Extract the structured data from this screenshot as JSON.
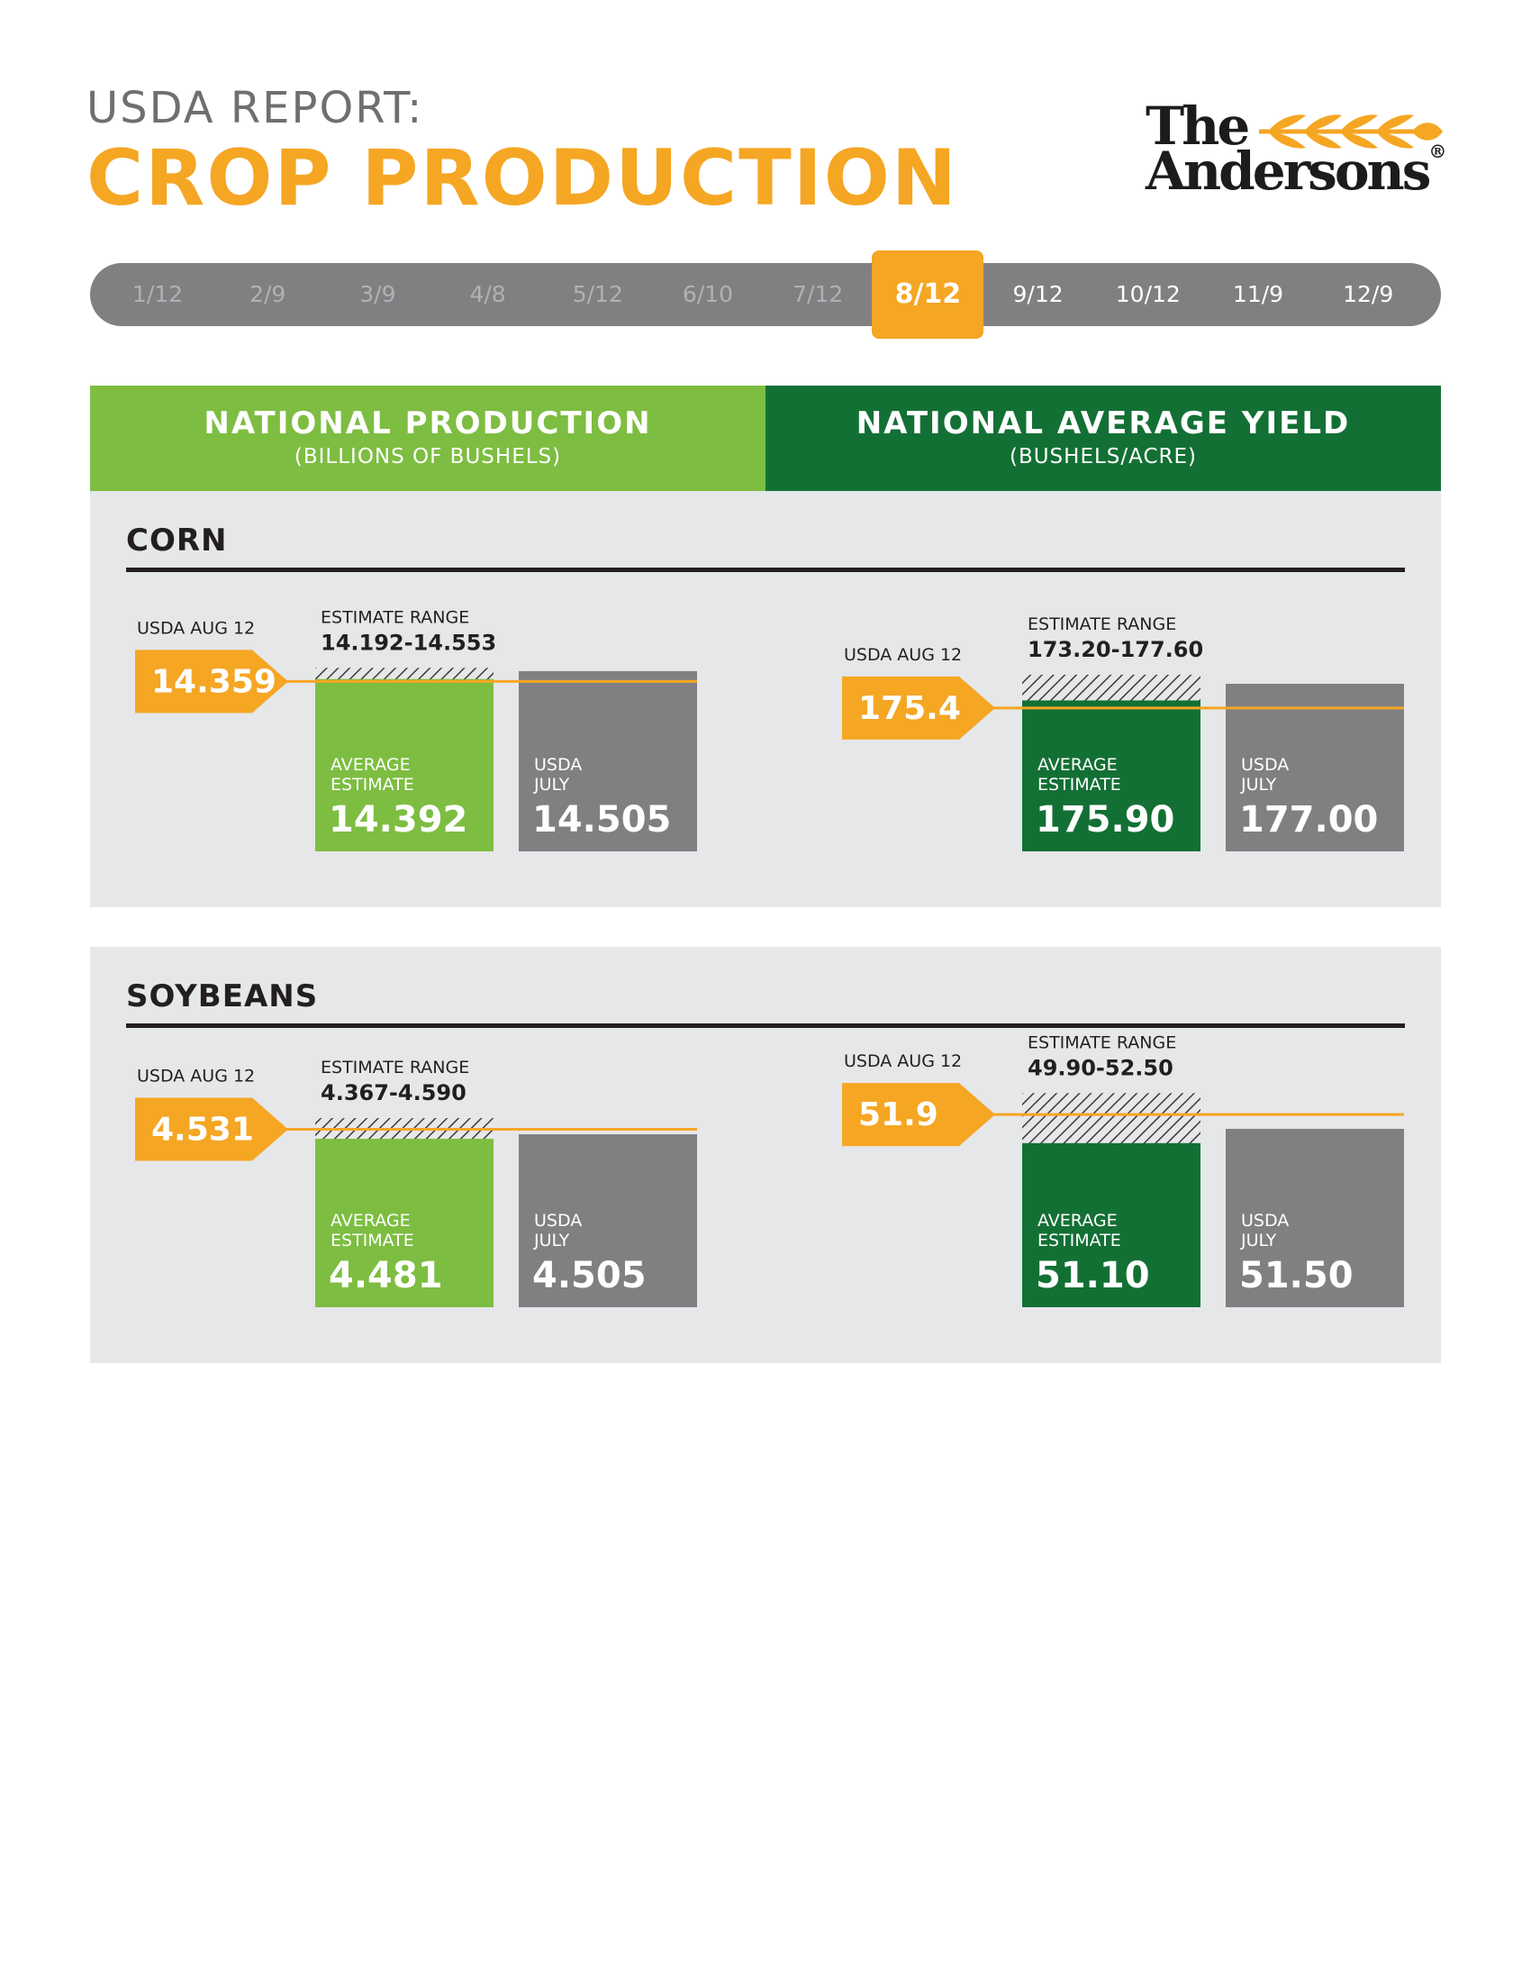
{
  "header": {
    "eyebrow": "USDA REPORT:",
    "title": "CROP PRODUCTION"
  },
  "logo": {
    "line1": "The",
    "line2": "Andersons",
    "registered": "®",
    "color_orange": "#f5a623",
    "color_dark": "#1c1c1c"
  },
  "timeline": {
    "dates": [
      "1/12",
      "2/9",
      "3/9",
      "4/8",
      "5/12",
      "6/10",
      "7/12",
      "8/12",
      "9/12",
      "10/12",
      "11/9",
      "12/9"
    ],
    "active_index": 7
  },
  "columns": {
    "left": {
      "title": "NATIONAL PRODUCTION",
      "subtitle": "(BILLIONS OF BUSHELS)"
    },
    "right": {
      "title": "NATIONAL AVERAGE YIELD",
      "subtitle": "(BUSHELS/ACRE)"
    }
  },
  "colors": {
    "orange": "#f5a623",
    "light_green": "#7dbd41",
    "dark_green": "#137035",
    "gray_bar": "#808083",
    "panel_bg": "#e6e7e8",
    "text_dark": "#231f20"
  },
  "chart_data": [
    {
      "type": "bar",
      "crop": "CORN",
      "metric": "production",
      "usda_label": "USDA AUG 12",
      "usda_value": 14.359,
      "range_label": "ESTIMATE RANGE",
      "range": "14.192-14.553",
      "range_low": 14.192,
      "range_high": 14.553,
      "avg_label": [
        "AVERAGE",
        "ESTIMATE"
      ],
      "avg_value": 14.392,
      "prev_label": [
        "USDA",
        "JULY"
      ],
      "prev_value": 14.505
    },
    {
      "type": "bar",
      "crop": "CORN",
      "metric": "yield",
      "usda_label": "USDA AUG 12",
      "usda_value": 175.4,
      "range_label": "ESTIMATE RANGE",
      "range": "173.20-177.60",
      "range_low": 173.2,
      "range_high": 177.6,
      "avg_label": [
        "AVERAGE",
        "ESTIMATE"
      ],
      "avg_value": 175.9,
      "avg_text": "175.90",
      "prev_label": [
        "USDA",
        "JULY"
      ],
      "prev_value": 177.0,
      "prev_text": "177.00"
    },
    {
      "type": "bar",
      "crop": "SOYBEANS",
      "metric": "production",
      "usda_label": "USDA AUG 12",
      "usda_value": 4.531,
      "range_label": "ESTIMATE RANGE",
      "range": "4.367-4.590",
      "range_low": 4.367,
      "range_high": 4.59,
      "avg_label": [
        "AVERAGE",
        "ESTIMATE"
      ],
      "avg_value": 4.481,
      "prev_label": [
        "USDA",
        "JULY"
      ],
      "prev_value": 4.505
    },
    {
      "type": "bar",
      "crop": "SOYBEANS",
      "metric": "yield",
      "usda_label": "USDA AUG 12",
      "usda_value": 51.9,
      "range_label": "ESTIMATE RANGE",
      "range": "49.90-52.50",
      "range_low": 49.9,
      "range_high": 52.5,
      "avg_label": [
        "AVERAGE",
        "ESTIMATE"
      ],
      "avg_value": 51.1,
      "avg_text": "51.10",
      "prev_label": [
        "USDA",
        "JULY"
      ],
      "prev_value": 51.5,
      "prev_text": "51.50"
    }
  ]
}
